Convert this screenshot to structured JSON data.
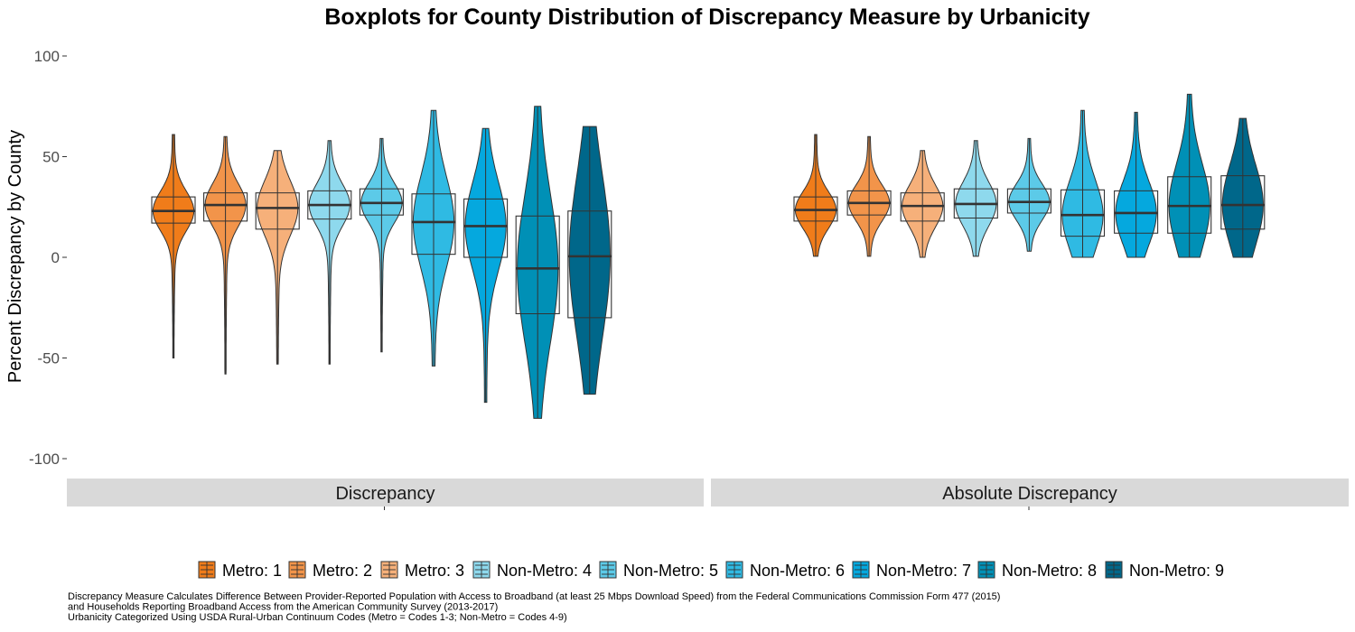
{
  "chart_data": {
    "type": "boxplot+violin",
    "title": "Boxplots for County Distribution of Discrepancy Measure by Urbanicity",
    "ylabel": "Percent Discrepancy by County",
    "ylim": [
      -100,
      100
    ],
    "yticks": [
      "100",
      "50",
      "0",
      "-50",
      "-100"
    ],
    "ytick_values": [
      100,
      50,
      0,
      -50,
      -100
    ],
    "grid": false,
    "legend_position": "bottom",
    "categories": [
      "Metro: 1",
      "Metro: 2",
      "Metro: 3",
      "Non-Metro: 4",
      "Non-Metro: 5",
      "Non-Metro: 6",
      "Non-Metro: 7",
      "Non-Metro: 8",
      "Non-Metro: 9"
    ],
    "colors": [
      "#f07c1a",
      "#f2944a",
      "#f6b07a",
      "#8ed9ed",
      "#5ccae8",
      "#2fbae3",
      "#05a8de",
      "#0090b6",
      "#00678a"
    ],
    "panels": [
      {
        "label": "Discrepancy",
        "series": [
          {
            "name": "Metro: 1",
            "min": -50,
            "q1": 17,
            "median": 23,
            "q3": 30,
            "max": 61
          },
          {
            "name": "Metro: 2",
            "min": -58,
            "q1": 18,
            "median": 26,
            "q3": 32,
            "max": 60
          },
          {
            "name": "Metro: 3",
            "min": -53,
            "q1": 14,
            "median": 24.5,
            "q3": 32,
            "max": 53
          },
          {
            "name": "Non-Metro: 4",
            "min": -53,
            "q1": 19,
            "median": 26,
            "q3": 33,
            "max": 58
          },
          {
            "name": "Non-Metro: 5",
            "min": -47,
            "q1": 21,
            "median": 27,
            "q3": 34,
            "max": 59
          },
          {
            "name": "Non-Metro: 6",
            "min": -54,
            "q1": 1.5,
            "median": 17.5,
            "q3": 31.5,
            "max": 73
          },
          {
            "name": "Non-Metro: 7",
            "min": -72,
            "q1": 0,
            "median": 15.5,
            "q3": 29,
            "max": 64
          },
          {
            "name": "Non-Metro: 8",
            "min": -80,
            "q1": -28,
            "median": -5.5,
            "q3": 20.5,
            "max": 75
          },
          {
            "name": "Non-Metro: 9",
            "min": -68,
            "q1": -30,
            "median": 0.5,
            "q3": 23,
            "max": 65
          }
        ]
      },
      {
        "label": "Absolute Discrepancy",
        "series": [
          {
            "name": "Metro: 1",
            "min": 0.5,
            "q1": 18,
            "median": 23.5,
            "q3": 30,
            "max": 61
          },
          {
            "name": "Metro: 2",
            "min": 0.5,
            "q1": 21,
            "median": 27,
            "q3": 33,
            "max": 60
          },
          {
            "name": "Metro: 3",
            "min": 0,
            "q1": 18,
            "median": 25.5,
            "q3": 32,
            "max": 53
          },
          {
            "name": "Non-Metro: 4",
            "min": 0.5,
            "q1": 19.5,
            "median": 26.5,
            "q3": 34,
            "max": 58
          },
          {
            "name": "Non-Metro: 5",
            "min": 3,
            "q1": 22,
            "median": 27.5,
            "q3": 34,
            "max": 59
          },
          {
            "name": "Non-Metro: 6",
            "min": 0,
            "q1": 10.5,
            "median": 21,
            "q3": 33.5,
            "max": 73
          },
          {
            "name": "Non-Metro: 7",
            "min": 0,
            "q1": 12,
            "median": 22,
            "q3": 33,
            "max": 72
          },
          {
            "name": "Non-Metro: 8",
            "min": 0,
            "q1": 12,
            "median": 25.5,
            "q3": 40,
            "max": 81
          },
          {
            "name": "Non-Metro: 9",
            "min": 0,
            "q1": 14,
            "median": 26,
            "q3": 40.5,
            "max": 69
          }
        ]
      }
    ],
    "caption": [
      "Discrepancy Measure Calculates Difference Between Provider-Reported Population with Access to Broadband (at least 25 Mbps Download Speed) from the Federal Communications Commission Form 477 (2015)",
      "and Households Reporting Broadband Access from the American Community Survey (2013-2017)",
      "Urbanicity Categorized Using USDA Rural-Urban Continuum Codes (Metro = Codes 1-3; Non-Metro = Codes 4-9)"
    ]
  }
}
